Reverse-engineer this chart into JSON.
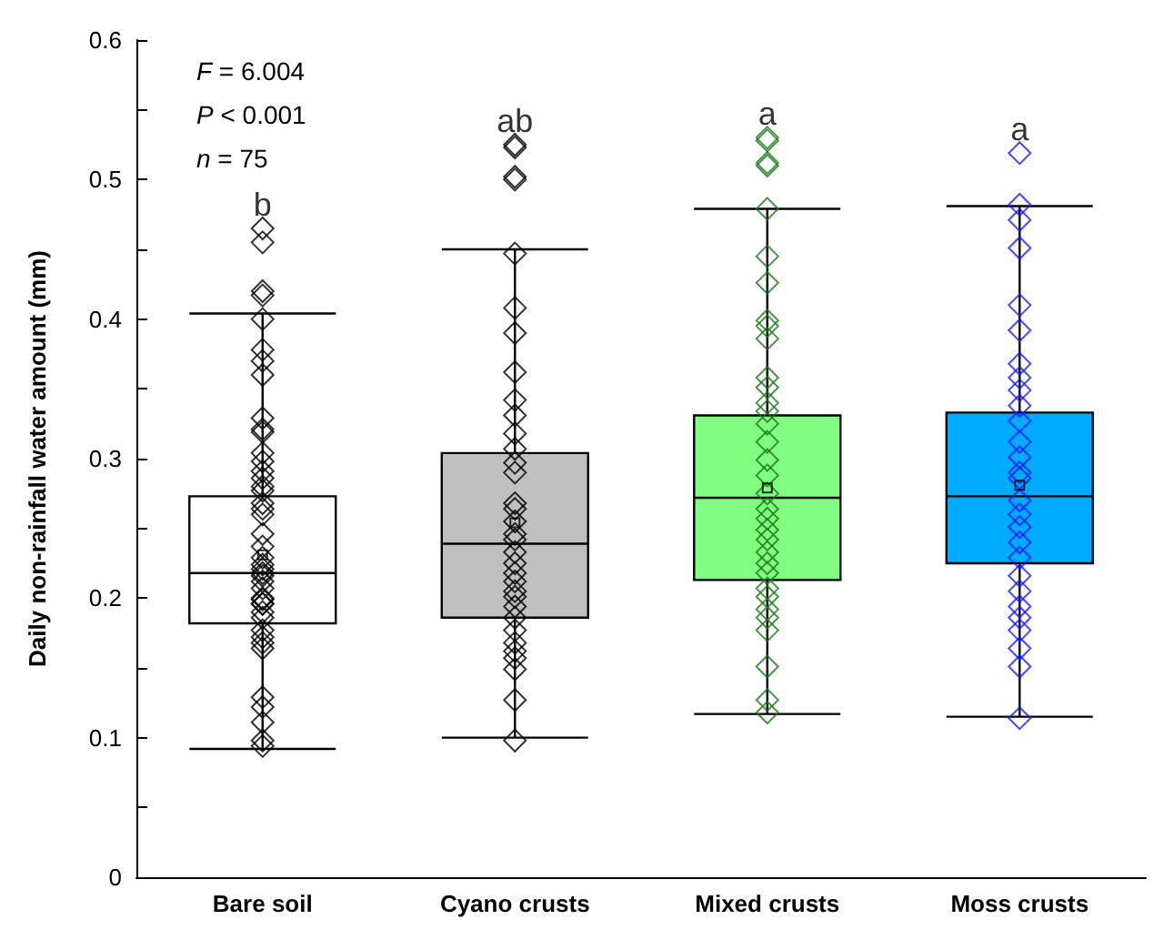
{
  "chart_data": {
    "type": "box",
    "ylabel": "Daily non-rainfall water amount (mm)",
    "categories": [
      "Bare soil",
      "Cyano crusts",
      "Mixed crusts",
      "Moss crusts"
    ],
    "ylim": [
      0,
      0.6
    ],
    "yticks": [
      0,
      {
        "value": 0.05,
        "label": null
      },
      0.1,
      {
        "value": 0.15,
        "label": null
      },
      0.2,
      {
        "value": 0.25,
        "label": null
      },
      0.3,
      {
        "value": 0.35,
        "label": null
      },
      0.4,
      {
        "value": 0.45,
        "label": null
      },
      0.5,
      {
        "value": 0.55,
        "label": null
      },
      0.6
    ],
    "marker": "diamond",
    "series": [
      {
        "colors": [
          "#ffffff",
          "#c0c0c0",
          "#80ff80",
          "#00aaff"
        ],
        "boxes": [
          {
            "low": 0.092,
            "q1": 0.182,
            "median": 0.218,
            "q3": 0.273,
            "high": 0.404,
            "mean": 0.231,
            "outliers": [
              0.417,
              0.42,
              0.455,
              0.465
            ]
          },
          {
            "low": 0.1,
            "q1": 0.186,
            "median": 0.239,
            "q3": 0.304,
            "high": 0.45,
            "mean": 0.254,
            "outliers": [
              0.5,
              0.502,
              0.523,
              0.525
            ]
          },
          {
            "low": 0.117,
            "q1": 0.213,
            "median": 0.272,
            "q3": 0.331,
            "high": 0.479,
            "mean": 0.279,
            "outliers": [
              0.51,
              0.512,
              0.528,
              0.53
            ]
          },
          {
            "low": 0.115,
            "q1": 0.225,
            "median": 0.273,
            "q3": 0.333,
            "high": 0.481,
            "mean": 0.281,
            "outliers": [
              0.519
            ]
          }
        ]
      },
      {
        "type": "scatter",
        "color": "#000000",
        "x": [
          "Bare soil",
          "Bare soil",
          "Bare soil",
          "Bare soil",
          "Bare soil",
          "Bare soil",
          "Bare soil",
          "Bare soil",
          "Bare soil",
          "Bare soil",
          "Bare soil",
          "Bare soil",
          "Bare soil",
          "Bare soil",
          "Bare soil",
          "Bare soil",
          "Bare soil",
          "Bare soil",
          "Bare soil",
          "Bare soil",
          "Bare soil",
          "Bare soil",
          "Bare soil",
          "Bare soil",
          "Bare soil",
          "Bare soil",
          "Bare soil",
          "Bare soil",
          "Bare soil",
          "Bare soil",
          "Bare soil",
          "Bare soil",
          "Bare soil",
          "Bare soil",
          "Bare soil",
          "Bare soil",
          "Bare soil",
          "Bare soil",
          "Bare soil",
          "Bare soil"
        ],
        "values": [
          0.4,
          0.378,
          0.37,
          0.36,
          0.329,
          0.321,
          0.319,
          0.304,
          0.298,
          0.286,
          0.28,
          0.277,
          0.291,
          0.268,
          0.264,
          0.26,
          0.246,
          0.237,
          0.229,
          0.221,
          0.218,
          0.216,
          0.207,
          0.199,
          0.196,
          0.19,
          0.186,
          0.177,
          0.172,
          0.168,
          0.164,
          0.129,
          0.122,
          0.111,
          0.098,
          0.094,
          0.212,
          0.224,
          0.2,
          0.196
        ]
      },
      {
        "type": "scatter",
        "color": "#000000",
        "x": [
          "Cyano crusts",
          "Cyano crusts",
          "Cyano crusts",
          "Cyano crusts",
          "Cyano crusts",
          "Cyano crusts",
          "Cyano crusts",
          "Cyano crusts",
          "Cyano crusts",
          "Cyano crusts",
          "Cyano crusts",
          "Cyano crusts",
          "Cyano crusts",
          "Cyano crusts",
          "Cyano crusts",
          "Cyano crusts",
          "Cyano crusts",
          "Cyano crusts",
          "Cyano crusts",
          "Cyano crusts",
          "Cyano crusts",
          "Cyano crusts",
          "Cyano crusts",
          "Cyano crusts",
          "Cyano crusts",
          "Cyano crusts",
          "Cyano crusts",
          "Cyano crusts",
          "Cyano crusts",
          "Cyano crusts"
        ],
        "values": [
          0.447,
          0.408,
          0.39,
          0.362,
          0.342,
          0.331,
          0.318,
          0.307,
          0.297,
          0.29,
          0.268,
          0.264,
          0.255,
          0.246,
          0.242,
          0.233,
          0.225,
          0.218,
          0.212,
          0.205,
          0.201,
          0.194,
          0.186,
          0.177,
          0.168,
          0.162,
          0.157,
          0.149,
          0.127,
          0.098
        ]
      },
      {
        "type": "scatter",
        "color": "#1a7a1a",
        "x": [
          "Mixed crusts",
          "Mixed crusts",
          "Mixed crusts",
          "Mixed crusts",
          "Mixed crusts",
          "Mixed crusts",
          "Mixed crusts",
          "Mixed crusts",
          "Mixed crusts",
          "Mixed crusts",
          "Mixed crusts",
          "Mixed crusts",
          "Mixed crusts",
          "Mixed crusts",
          "Mixed crusts",
          "Mixed crusts",
          "Mixed crusts",
          "Mixed crusts",
          "Mixed crusts",
          "Mixed crusts",
          "Mixed crusts",
          "Mixed crusts",
          "Mixed crusts",
          "Mixed crusts",
          "Mixed crusts",
          "Mixed crusts",
          "Mixed crusts",
          "Mixed crusts",
          "Mixed crusts",
          "Mixed crusts"
        ],
        "values": [
          0.479,
          0.445,
          0.426,
          0.399,
          0.395,
          0.386,
          0.358,
          0.351,
          0.34,
          0.334,
          0.325,
          0.312,
          0.299,
          0.288,
          0.275,
          0.264,
          0.257,
          0.249,
          0.242,
          0.233,
          0.225,
          0.218,
          0.207,
          0.201,
          0.192,
          0.186,
          0.177,
          0.151,
          0.127,
          0.118
        ]
      },
      {
        "type": "scatter",
        "color": "#1a1aff",
        "x": [
          "Moss crusts",
          "Moss crusts",
          "Moss crusts",
          "Moss crusts",
          "Moss crusts",
          "Moss crusts",
          "Moss crusts",
          "Moss crusts",
          "Moss crusts",
          "Moss crusts",
          "Moss crusts",
          "Moss crusts",
          "Moss crusts",
          "Moss crusts",
          "Moss crusts",
          "Moss crusts",
          "Moss crusts",
          "Moss crusts",
          "Moss crusts",
          "Moss crusts",
          "Moss crusts",
          "Moss crusts",
          "Moss crusts",
          "Moss crusts",
          "Moss crusts",
          "Moss crusts",
          "Moss crusts"
        ],
        "values": [
          0.482,
          0.471,
          0.451,
          0.41,
          0.392,
          0.368,
          0.358,
          0.349,
          0.338,
          0.327,
          0.312,
          0.301,
          0.29,
          0.286,
          0.27,
          0.26,
          0.251,
          0.24,
          0.229,
          0.216,
          0.205,
          0.194,
          0.186,
          0.177,
          0.164,
          0.151,
          0.114
        ]
      }
    ],
    "annotations": [
      "F = 6.004",
      "P < 0.001",
      "n = 75",
      "b",
      "ab",
      "a",
      "a"
    ]
  }
}
